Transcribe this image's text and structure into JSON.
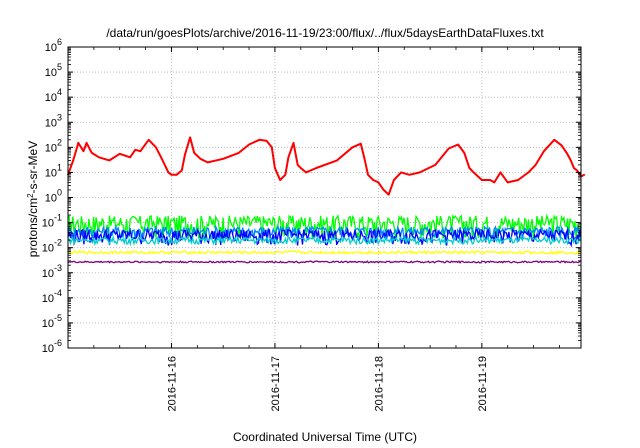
{
  "chart_data": {
    "type": "line",
    "title": "/data/run/goesPlots/archive/2016-11-19/23:00/flux/../flux/5daysEarthDataFluxes.txt",
    "xlabel": "Coordinated Universal Time (UTC)",
    "ylabel": {
      "pre": "protons/cm",
      "sup": "2",
      "post": "-s-sr-MeV"
    },
    "x_range": [
      "2016-11-15 00:00",
      "2016-11-19 23:00"
    ],
    "x_ticks": [
      "2016-11-16",
      "2016-11-17",
      "2016-11-18",
      "2016-11-19"
    ],
    "y_scale": "log",
    "y_exp_range": [
      -6,
      6
    ],
    "y_tick_exponents": [
      -6,
      -5,
      -4,
      -3,
      -2,
      -1,
      0,
      1,
      2,
      3,
      4,
      5,
      6
    ],
    "grid": true,
    "legend": "none",
    "series": [
      {
        "color": "#ff0000",
        "note": "day offsets (days after 2016-11-15 00:00) and flux values",
        "x": [
          0.0,
          0.05,
          0.1,
          0.15,
          0.18,
          0.23,
          0.3,
          0.4,
          0.5,
          0.6,
          0.65,
          0.7,
          0.78,
          0.85,
          0.9,
          0.97,
          1.0,
          1.05,
          1.1,
          1.13,
          1.18,
          1.22,
          1.28,
          1.35,
          1.5,
          1.65,
          1.75,
          1.85,
          1.92,
          1.97,
          2.0,
          2.05,
          2.1,
          2.13,
          2.18,
          2.22,
          2.25,
          2.3,
          2.4,
          2.6,
          2.75,
          2.83,
          2.87,
          2.9,
          2.95,
          3.0,
          3.05,
          3.1,
          3.15,
          3.22,
          3.3,
          3.4,
          3.55,
          3.68,
          3.77,
          3.83,
          3.88,
          3.92,
          4.0,
          4.08,
          4.12,
          4.18,
          4.25,
          4.35,
          4.45,
          4.52,
          4.6,
          4.7,
          4.77,
          4.82,
          4.86,
          4.89,
          4.92,
          4.96,
          4.99
        ],
        "values": [
          8,
          30,
          150,
          70,
          150,
          60,
          40,
          30,
          55,
          40,
          80,
          70,
          200,
          100,
          40,
          10,
          8,
          8,
          12,
          50,
          250,
          60,
          35,
          25,
          35,
          60,
          130,
          200,
          180,
          100,
          15,
          5,
          8,
          40,
          150,
          20,
          15,
          10,
          15,
          30,
          100,
          140,
          30,
          8,
          5,
          4,
          2,
          1.3,
          5,
          10,
          8,
          10,
          20,
          90,
          130,
          60,
          15,
          10,
          5,
          5,
          4,
          10,
          4,
          5,
          10,
          20,
          70,
          200,
          120,
          60,
          30,
          15,
          12,
          7,
          8
        ]
      }
    ],
    "bands": [
      {
        "color": "#00ff00",
        "base": 0.1,
        "amplitude": 0.09
      },
      {
        "color": "#0088ff",
        "base": 0.045,
        "amplitude": 0.025
      },
      {
        "color": "#0000ff",
        "base": 0.032,
        "amplitude": 0.02
      },
      {
        "color": "#00cccc",
        "base": 0.02,
        "amplitude": 0.006
      },
      {
        "color": "#ffff00",
        "base": 0.0065,
        "amplitude": 0.0008
      },
      {
        "color": "#800080",
        "base": 0.0027,
        "amplitude": 0.0002
      }
    ]
  }
}
